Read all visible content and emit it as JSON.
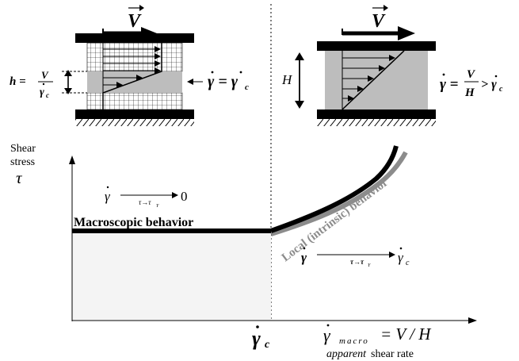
{
  "left_panel": {
    "velocity_label": "V",
    "gap_numerator": "V",
    "gap_denominator": "γ",
    "gap_denominator_sub": "c",
    "gap_prefix": "h =",
    "relation_text": "γ = γ",
    "relation_sub": "c"
  },
  "right_panel": {
    "velocity_label": "V",
    "height_label": "H",
    "rate_lhs": "γ =",
    "rate_fraction_num": "V",
    "rate_fraction_den": "H",
    "rate_rhs": "> γ",
    "rate_rhs_sub": "c"
  },
  "plot": {
    "y_axis_label_line1": "Shear",
    "y_axis_label_line2": "stress",
    "y_axis_symbol": "τ",
    "limit_top_gamma": "γ",
    "limit_top_arrow_sub": "τ→τ",
    "limit_top_arrow_sub_y": "Y",
    "limit_top_value": "0",
    "macro_label": "Macroscopic behavior",
    "local_label": "Local (intrinsic) behavior",
    "limit_bottom_gamma": "γ",
    "limit_bottom_arrow_sub": "τ→τ",
    "limit_bottom_arrow_sub_y": "Y",
    "limit_bottom_value": "γ",
    "limit_bottom_value_sub": "c",
    "critical_rate_label": "γ",
    "critical_rate_sub": "c",
    "x_axis_gamma": "γ",
    "x_axis_sub": "macro",
    "x_axis_equation": "= V / H",
    "x_axis_caption_italic": "apparent",
    "x_axis_caption_rest": " shear rate"
  },
  "colors": {
    "line_black": "#000000",
    "local_gray": "#8c8c8c",
    "fluid_gray": "#bdbdbd",
    "plateau_fill": "#f4f4f4"
  }
}
